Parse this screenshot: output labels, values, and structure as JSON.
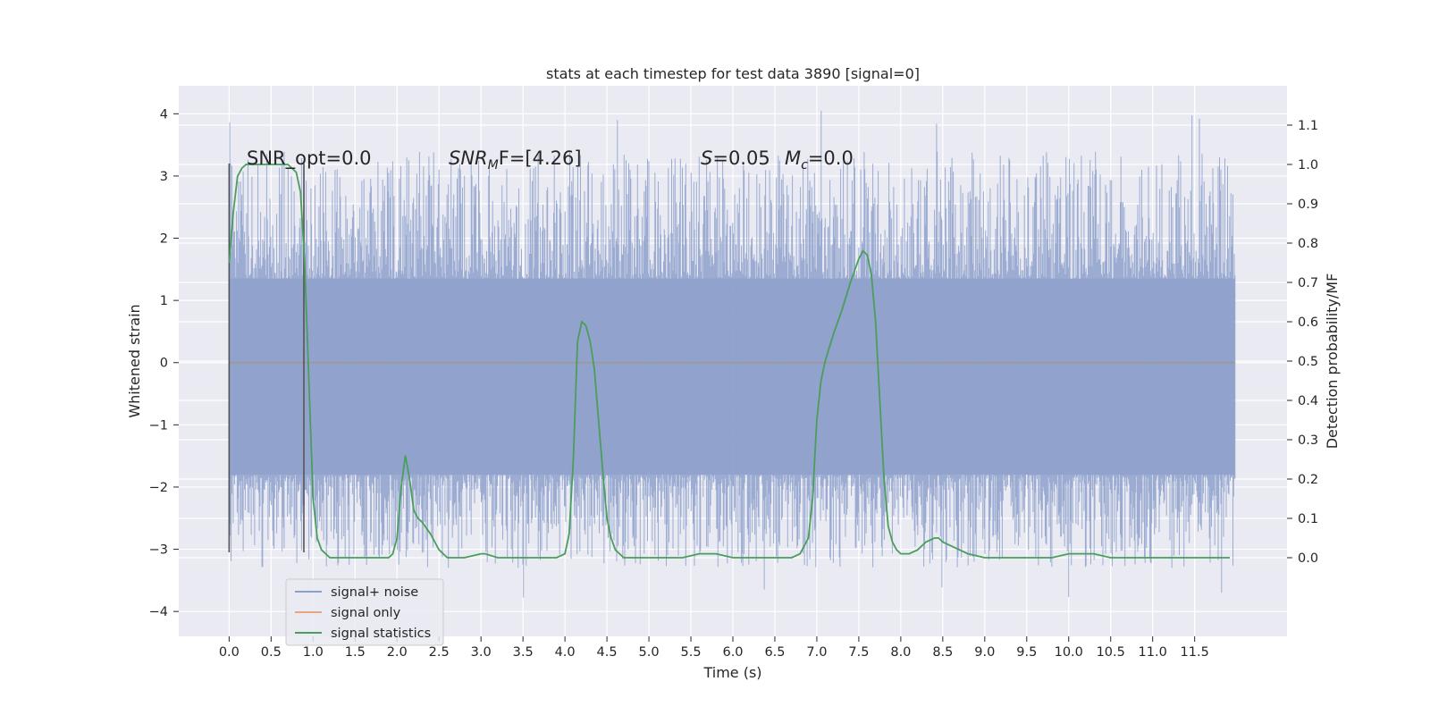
{
  "chart_data": {
    "type": "line",
    "title": "stats at each timestep for test data 3890 [signal=0]",
    "xlabel": "Time (s)",
    "ylabel_left": "Whitened strain",
    "ylabel_right": "Detection probability/MF",
    "xlim": [
      -0.6,
      12.6
    ],
    "ylim_left": [
      -4.4,
      4.45
    ],
    "ylim_right": [
      -0.2,
      1.2
    ],
    "x_ticks": [
      "0.0",
      "0.5",
      "1.0",
      "1.5",
      "2.0",
      "2.5",
      "3.0",
      "3.5",
      "4.0",
      "4.5",
      "5.0",
      "5.5",
      "6.0",
      "6.5",
      "7.0",
      "7.5",
      "8.0",
      "8.5",
      "9.0",
      "9.5",
      "10.0",
      "10.5",
      "11.0",
      "11.5"
    ],
    "y_ticks_left": [
      "4",
      "3",
      "2",
      "1",
      "0",
      "−1",
      "−2",
      "−3",
      "−4"
    ],
    "y_ticks_right": [
      "1.1",
      "1.0",
      "0.9",
      "0.8",
      "0.7",
      "0.6",
      "0.5",
      "0.4",
      "0.3",
      "0.2",
      "0.1",
      "0.0"
    ],
    "grid": true,
    "legend_placement": "lower-left",
    "legend": [
      {
        "label": "signal+ noise",
        "color": "#8da0cb"
      },
      {
        "label": "signal only",
        "color": "#e8a57f"
      },
      {
        "label": "signal statistics",
        "color": "#4a9e5c"
      }
    ],
    "annotations": {
      "snr_opt": "SNR_opt=0.0",
      "snr_mf_base": "SNR",
      "snr_mf_sub": "M",
      "snr_mf_rest": "F=[4.26]",
      "s_label": "S",
      "s_value": "=0.05",
      "mc_base": "M",
      "mc_sub": "c",
      "mc_value": "=0.0"
    },
    "markers": {
      "window_start": 0.0,
      "window_end": 0.89,
      "y_range": [
        -3.05,
        3.2
      ]
    },
    "noise_series": {
      "name": "signal+ noise",
      "x_start": 0.0,
      "x_end": 11.98,
      "core_band": [
        -1.8,
        1.35
      ],
      "typical_extent": [
        -2.7,
        2.8
      ],
      "max": 4.1,
      "min": -3.9
    },
    "signal_only": {
      "name": "signal only",
      "value": 0.0
    },
    "statistics_series": {
      "name": "signal statistics",
      "x": [
        0.0,
        0.05,
        0.1,
        0.15,
        0.2,
        0.3,
        0.5,
        0.7,
        0.75,
        0.8,
        0.85,
        0.9,
        0.95,
        1.0,
        1.05,
        1.1,
        1.2,
        1.5,
        1.9,
        1.95,
        2.0,
        2.05,
        2.1,
        2.15,
        2.2,
        2.25,
        2.3,
        2.4,
        2.5,
        2.6,
        2.8,
        3.0,
        3.05,
        3.2,
        3.5,
        3.9,
        4.0,
        4.05,
        4.1,
        4.15,
        4.2,
        4.25,
        4.3,
        4.35,
        4.4,
        4.45,
        4.5,
        4.55,
        4.6,
        4.65,
        4.7,
        4.8,
        5.0,
        5.4,
        5.6,
        5.8,
        6.0,
        6.3,
        6.5,
        6.7,
        6.8,
        6.9,
        6.95,
        7.0,
        7.05,
        7.1,
        7.2,
        7.3,
        7.4,
        7.5,
        7.55,
        7.6,
        7.65,
        7.7,
        7.75,
        7.8,
        7.85,
        7.9,
        7.95,
        8.0,
        8.05,
        8.1,
        8.2,
        8.3,
        8.4,
        8.45,
        8.5,
        8.6,
        8.8,
        9.0,
        9.5,
        9.8,
        10.0,
        10.2,
        10.3,
        10.5,
        11.0,
        11.5,
        11.92
      ],
      "values": [
        0.75,
        0.88,
        0.97,
        0.99,
        1.0,
        1.0,
        1.0,
        1.0,
        0.99,
        0.98,
        0.93,
        0.75,
        0.45,
        0.15,
        0.05,
        0.02,
        0.0,
        0.0,
        0.0,
        0.01,
        0.05,
        0.18,
        0.26,
        0.2,
        0.12,
        0.1,
        0.09,
        0.06,
        0.02,
        0.0,
        0.0,
        0.01,
        0.01,
        0.0,
        0.0,
        0.0,
        0.01,
        0.06,
        0.25,
        0.55,
        0.6,
        0.59,
        0.55,
        0.48,
        0.35,
        0.22,
        0.1,
        0.05,
        0.02,
        0.01,
        0.0,
        0.0,
        0.0,
        0.0,
        0.01,
        0.01,
        0.0,
        0.0,
        0.0,
        0.0,
        0.01,
        0.05,
        0.15,
        0.35,
        0.45,
        0.5,
        0.57,
        0.63,
        0.7,
        0.76,
        0.78,
        0.77,
        0.72,
        0.6,
        0.4,
        0.2,
        0.08,
        0.04,
        0.02,
        0.01,
        0.01,
        0.01,
        0.02,
        0.04,
        0.05,
        0.05,
        0.04,
        0.03,
        0.01,
        0.0,
        0.0,
        0.0,
        0.01,
        0.01,
        0.01,
        0.0,
        0.0,
        0.0,
        0.0
      ]
    }
  }
}
